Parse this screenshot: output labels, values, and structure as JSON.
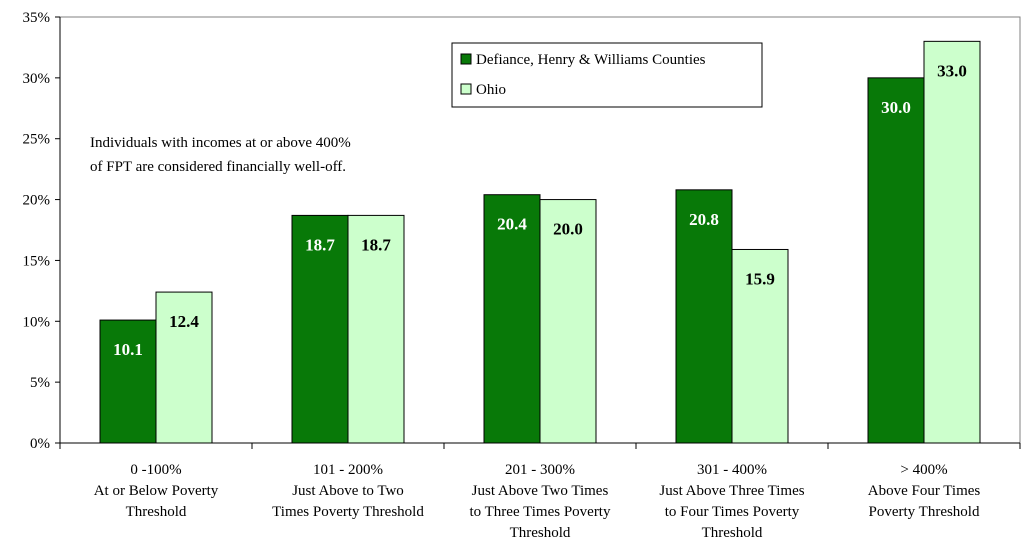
{
  "chart_data": {
    "type": "bar",
    "categories": [
      [
        "0 -100%",
        "At or Below Poverty",
        "Threshold"
      ],
      [
        "101 - 200%",
        "Just Above to Two",
        "Times Poverty Threshold"
      ],
      [
        "201 - 300%",
        "Just Above Two Times",
        "to Three Times Poverty",
        "Threshold"
      ],
      [
        "301 - 400%",
        "Just Above Three Times",
        "to Four Times Poverty",
        "Threshold"
      ],
      [
        "> 400%",
        "Above Four Times",
        "Poverty Threshold"
      ]
    ],
    "series": [
      {
        "name": "Defiance, Henry & Williams Counties",
        "color": "#087908",
        "label_color": "#ffffff",
        "values": [
          10.1,
          18.7,
          20.4,
          20.8,
          30.0
        ]
      },
      {
        "name": "Ohio",
        "color": "#ccffcc",
        "label_color": "#000000",
        "values": [
          12.4,
          18.7,
          20.0,
          15.9,
          33.0
        ]
      }
    ],
    "ylim": [
      0,
      35
    ],
    "yticks": [
      0,
      5,
      10,
      15,
      20,
      25,
      30,
      35
    ],
    "ytick_labels": [
      "0%",
      "5%",
      "10%",
      "15%",
      "20%",
      "25%",
      "30%",
      "35%"
    ],
    "data_label_format": "one-decimal",
    "legend_position": "top-right",
    "grid": false,
    "annotation": [
      "Individuals with incomes at or above 400%",
      "of FPT are considered financially well-off."
    ]
  }
}
